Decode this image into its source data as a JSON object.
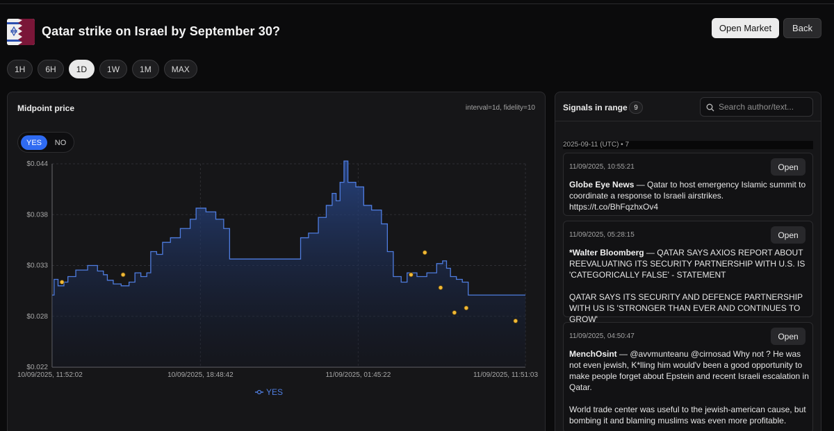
{
  "header": {
    "title": "Qatar strike on Israel by September 30?",
    "open_market_label": "Open Market",
    "back_label": "Back"
  },
  "ranges": [
    {
      "label": "1H",
      "active": false
    },
    {
      "label": "6H",
      "active": false
    },
    {
      "label": "1D",
      "active": true
    },
    {
      "label": "1W",
      "active": false
    },
    {
      "label": "1M",
      "active": false
    },
    {
      "label": "MAX",
      "active": false
    }
  ],
  "chart_panel": {
    "title": "Midpoint price",
    "meta": "interval=1d, fidelity=10",
    "toggle": {
      "yes_label": "YES",
      "no_label": "NO",
      "selected": "YES"
    }
  },
  "chart_data": {
    "type": "line",
    "subtype": "area",
    "series_name": "YES",
    "color": "#4f7de0",
    "ylim": [
      0.022,
      0.044
    ],
    "y_ticks": [
      "$0.044",
      "$0.038",
      "$0.033",
      "$0.028",
      "$0.022"
    ],
    "x_ticks": [
      "10/09/2025, 11:52:02",
      "10/09/2025, 18:48:42",
      "11/09/2025, 01:45:22",
      "11/09/2025, 11:51:03"
    ],
    "x_range": [
      0,
      24
    ],
    "x_unit": "hours since 10/09/2025, 11:52:02",
    "grid": true,
    "legend": "bottom-center",
    "points": [
      [
        0.0,
        0.0298
      ],
      [
        0.1,
        0.0315
      ],
      [
        0.3,
        0.0308
      ],
      [
        0.6,
        0.0312
      ],
      [
        0.8,
        0.0318
      ],
      [
        1.2,
        0.0325
      ],
      [
        1.8,
        0.033
      ],
      [
        2.3,
        0.0324
      ],
      [
        2.6,
        0.032
      ],
      [
        2.8,
        0.0314
      ],
      [
        3.1,
        0.031
      ],
      [
        3.5,
        0.0308
      ],
      [
        3.9,
        0.0312
      ],
      [
        4.2,
        0.0322
      ],
      [
        4.5,
        0.0318
      ],
      [
        4.8,
        0.0322
      ],
      [
        5.0,
        0.0345
      ],
      [
        5.3,
        0.0342
      ],
      [
        5.6,
        0.0355
      ],
      [
        6.0,
        0.036
      ],
      [
        6.5,
        0.037
      ],
      [
        7.0,
        0.038
      ],
      [
        7.3,
        0.0392
      ],
      [
        7.8,
        0.0388
      ],
      [
        8.3,
        0.038
      ],
      [
        8.7,
        0.037
      ],
      [
        9.0,
        0.0337
      ],
      [
        9.5,
        0.0337
      ],
      [
        10.0,
        0.0337
      ],
      [
        10.5,
        0.0337
      ],
      [
        11.0,
        0.0337
      ],
      [
        11.5,
        0.0337
      ],
      [
        12.0,
        0.0337
      ],
      [
        12.4,
        0.0337
      ],
      [
        12.6,
        0.036
      ],
      [
        13.0,
        0.0365
      ],
      [
        13.5,
        0.0382
      ],
      [
        13.9,
        0.0395
      ],
      [
        14.2,
        0.0408
      ],
      [
        14.4,
        0.04
      ],
      [
        14.6,
        0.042
      ],
      [
        14.8,
        0.0443
      ],
      [
        15.0,
        0.042
      ],
      [
        15.4,
        0.0415
      ],
      [
        15.8,
        0.0395
      ],
      [
        16.2,
        0.039
      ],
      [
        16.7,
        0.0375
      ],
      [
        17.0,
        0.0345
      ],
      [
        17.3,
        0.0318
      ],
      [
        17.7,
        0.0312
      ],
      [
        18.0,
        0.0322
      ],
      [
        18.5,
        0.0318
      ],
      [
        19.0,
        0.0322
      ],
      [
        19.5,
        0.0332
      ],
      [
        19.8,
        0.0335
      ],
      [
        20.0,
        0.0327
      ],
      [
        20.2,
        0.0318
      ],
      [
        20.5,
        0.0315
      ],
      [
        20.8,
        0.0312
      ],
      [
        21.1,
        0.0298
      ]
    ]
  },
  "signals": {
    "title": "Signals in range",
    "count": "9",
    "search_placeholder": "Search author/text...",
    "group_label": "2025-09-11 (UTC) • 7",
    "cards": [
      {
        "time": "11/09/2025, 10:55:21",
        "author": "Globe Eye News",
        "text": " — Qatar to host emergency Islamic summit to coordinate a response to Israeli airstrikes. https://t.co/BhFqzhxOv4",
        "open_label": "Open"
      },
      {
        "time": "11/09/2025, 05:28:15",
        "author": "*Walter Bloomberg",
        "text": " — QATAR SAYS AXIOS REPORT ABOUT REEVALUATING ITS SECURITY PARTNERSHIP WITH U.S. IS 'CATEGORICALLY FALSE' - STATEMENT\n\nQATAR SAYS ITS SECURITY AND DEFENCE PARTNERSHIP WITH US IS 'STRONGER THAN EVER AND CONTINUES TO GROW'",
        "open_label": "Open"
      },
      {
        "time": "11/09/2025, 04:50:47",
        "author": "MenchOsint",
        "text": " — @avvmunteanu @cirnosad Why not ? He was not even jewish, K*lling him would'v been a good opportunity to make people forget about Epstein and recent Israeli escalation in Qatar.\n\nWorld trade center was useful to the jewish-american cause, but bombing it and blaming muslims was even more profitable.",
        "open_label": "Open"
      }
    ]
  }
}
